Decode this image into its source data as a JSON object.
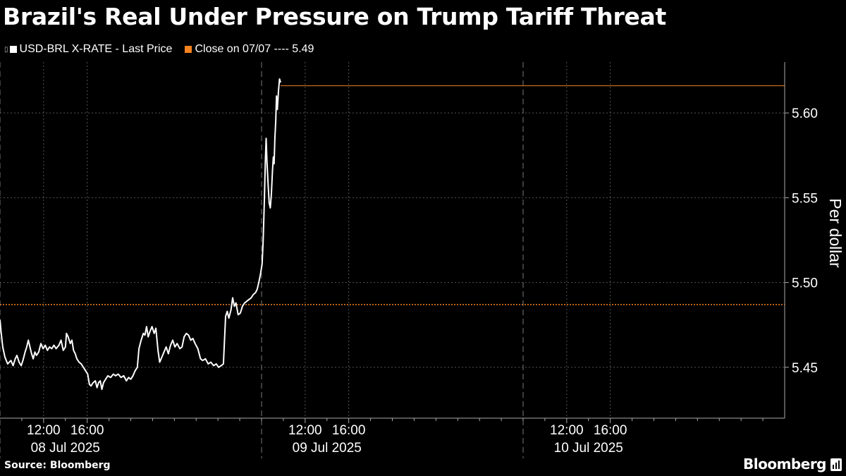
{
  "header": {
    "title": "Brazil's Real Under Pressure on Trump Tariff Threat"
  },
  "legend": [
    {
      "label": "USD-BRL X-RATE - Last Price",
      "color": "#ffffff"
    },
    {
      "label": "Close on 07/07 ---- 5.49",
      "color": "#f5821f"
    }
  ],
  "footer": {
    "source": "Source: Bloomberg",
    "brand": "Bloomberg",
    "brand_icon": "bloomberg-chart-icon"
  },
  "chart_data": {
    "type": "line",
    "ylabel": "Per dollar",
    "ylim": [
      5.42,
      5.63
    ],
    "yticks": [
      5.45,
      5.5,
      5.55,
      5.6
    ],
    "ytick_labels": [
      "5.45",
      "5.50",
      "5.55",
      "5.60"
    ],
    "xlim": [
      0,
      72
    ],
    "x_unit": "hours since 08 Jul 2025 08:00",
    "xticks": [
      {
        "x": 4,
        "time": "12:00",
        "date": "08 Jul 2025"
      },
      {
        "x": 8,
        "time": "16:00",
        "date": ""
      },
      {
        "x": 28,
        "time": "12:00",
        "date": "09 Jul 2025"
      },
      {
        "x": 32,
        "time": "16:00",
        "date": ""
      },
      {
        "x": 52,
        "time": "12:00",
        "date": "10 Jul 2025"
      },
      {
        "x": 56,
        "time": "16:00",
        "date": ""
      }
    ],
    "day_separators": [
      0,
      24,
      48
    ],
    "grid": true,
    "close_line": {
      "label": "Close on 07/07",
      "value": 5.487,
      "color": "#f5821f"
    },
    "series": [
      {
        "name": "USD-BRL X-RATE - Last Price",
        "color": "#ffffff",
        "points": [
          [
            0.0,
            5.478
          ],
          [
            0.1,
            5.471
          ],
          [
            0.25,
            5.462
          ],
          [
            0.45,
            5.456
          ],
          [
            0.7,
            5.452
          ],
          [
            1.0,
            5.454
          ],
          [
            1.2,
            5.451
          ],
          [
            1.4,
            5.455
          ],
          [
            1.55,
            5.457
          ],
          [
            1.75,
            5.453
          ],
          [
            1.95,
            5.451
          ],
          [
            2.1,
            5.454
          ],
          [
            2.3,
            5.459
          ],
          [
            2.45,
            5.462
          ],
          [
            2.6,
            5.466
          ],
          [
            2.75,
            5.462
          ],
          [
            2.9,
            5.458
          ],
          [
            3.05,
            5.455
          ],
          [
            3.2,
            5.459
          ],
          [
            3.35,
            5.457
          ],
          [
            3.55,
            5.459
          ],
          [
            3.75,
            5.464
          ],
          [
            3.95,
            5.461
          ],
          [
            4.15,
            5.463
          ],
          [
            4.35,
            5.46
          ],
          [
            4.55,
            5.462
          ],
          [
            4.75,
            5.461
          ],
          [
            4.95,
            5.463
          ],
          [
            5.15,
            5.461
          ],
          [
            5.4,
            5.463
          ],
          [
            5.6,
            5.466
          ],
          [
            5.8,
            5.46
          ],
          [
            6.0,
            5.462
          ],
          [
            6.1,
            5.47
          ],
          [
            6.25,
            5.468
          ],
          [
            6.45,
            5.464
          ],
          [
            6.6,
            5.466
          ],
          [
            6.75,
            5.46
          ],
          [
            6.9,
            5.458
          ],
          [
            7.05,
            5.455
          ],
          [
            7.25,
            5.453
          ],
          [
            7.45,
            5.452
          ],
          [
            7.65,
            5.45
          ],
          [
            7.85,
            5.448
          ],
          [
            8.05,
            5.446
          ],
          [
            8.2,
            5.44
          ],
          [
            8.35,
            5.439
          ],
          [
            8.55,
            5.441
          ],
          [
            8.75,
            5.442
          ],
          [
            8.9,
            5.438
          ],
          [
            9.05,
            5.441
          ],
          [
            9.2,
            5.442
          ],
          [
            9.35,
            5.437
          ],
          [
            9.5,
            5.441
          ],
          [
            9.7,
            5.443
          ],
          [
            9.9,
            5.445
          ],
          [
            10.15,
            5.444
          ],
          [
            10.4,
            5.446
          ],
          [
            10.6,
            5.445
          ],
          [
            10.85,
            5.446
          ],
          [
            11.1,
            5.444
          ],
          [
            11.35,
            5.445
          ],
          [
            11.6,
            5.442
          ],
          [
            11.8,
            5.444
          ],
          [
            12.0,
            5.443
          ],
          [
            12.2,
            5.445
          ],
          [
            12.4,
            5.448
          ],
          [
            12.6,
            5.45
          ],
          [
            12.75,
            5.461
          ],
          [
            12.95,
            5.466
          ],
          [
            13.15,
            5.47
          ],
          [
            13.3,
            5.469
          ],
          [
            13.45,
            5.474
          ],
          [
            13.6,
            5.468
          ],
          [
            13.75,
            5.471
          ],
          [
            13.95,
            5.474
          ],
          [
            14.15,
            5.47
          ],
          [
            14.3,
            5.473
          ],
          [
            14.5,
            5.46
          ],
          [
            14.65,
            5.453
          ],
          [
            14.85,
            5.456
          ],
          [
            15.05,
            5.459
          ],
          [
            15.25,
            5.462
          ],
          [
            15.45,
            5.458
          ],
          [
            15.65,
            5.463
          ],
          [
            15.85,
            5.466
          ],
          [
            16.05,
            5.462
          ],
          [
            16.25,
            5.464
          ],
          [
            16.5,
            5.461
          ],
          [
            16.7,
            5.462
          ],
          [
            16.9,
            5.468
          ],
          [
            17.1,
            5.47
          ],
          [
            17.3,
            5.469
          ],
          [
            17.5,
            5.466
          ],
          [
            17.7,
            5.467
          ],
          [
            17.9,
            5.464
          ],
          [
            18.15,
            5.461
          ],
          [
            18.4,
            5.455
          ],
          [
            18.6,
            5.454
          ],
          [
            18.85,
            5.455
          ],
          [
            19.1,
            5.452
          ],
          [
            19.35,
            5.453
          ],
          [
            19.6,
            5.451
          ],
          [
            19.85,
            5.452
          ],
          [
            20.05,
            5.45
          ],
          [
            20.3,
            5.451
          ],
          [
            20.5,
            5.452
          ],
          [
            20.7,
            5.48
          ],
          [
            20.85,
            5.483
          ],
          [
            21.0,
            5.479
          ],
          [
            21.2,
            5.484
          ],
          [
            21.35,
            5.491
          ],
          [
            21.5,
            5.486
          ],
          [
            21.65,
            5.488
          ],
          [
            21.85,
            5.481
          ],
          [
            22.05,
            5.482
          ],
          [
            22.25,
            5.486
          ],
          [
            22.45,
            5.488
          ],
          [
            22.65,
            5.489
          ],
          [
            22.85,
            5.49
          ],
          [
            23.05,
            5.491
          ],
          [
            23.25,
            5.493
          ],
          [
            23.45,
            5.494
          ],
          [
            23.6,
            5.496
          ],
          [
            23.75,
            5.5
          ],
          [
            23.9,
            5.505
          ],
          [
            24.05,
            5.511
          ],
          [
            24.15,
            5.525
          ],
          [
            24.25,
            5.547
          ],
          [
            24.35,
            5.572
          ],
          [
            24.42,
            5.585
          ],
          [
            24.5,
            5.571
          ],
          [
            24.6,
            5.558
          ],
          [
            24.7,
            5.547
          ],
          [
            24.8,
            5.544
          ],
          [
            24.9,
            5.552
          ],
          [
            25.0,
            5.566
          ],
          [
            25.08,
            5.574
          ],
          [
            25.15,
            5.57
          ],
          [
            25.22,
            5.585
          ],
          [
            25.3,
            5.595
          ],
          [
            25.37,
            5.61
          ],
          [
            25.45,
            5.602
          ],
          [
            25.55,
            5.613
          ],
          [
            25.65,
            5.62
          ],
          [
            25.75,
            5.618
          ]
        ]
      }
    ],
    "flat_line": {
      "x_start": 25.75,
      "x_end": 72,
      "value": 5.616,
      "color": "#f5821f"
    }
  }
}
